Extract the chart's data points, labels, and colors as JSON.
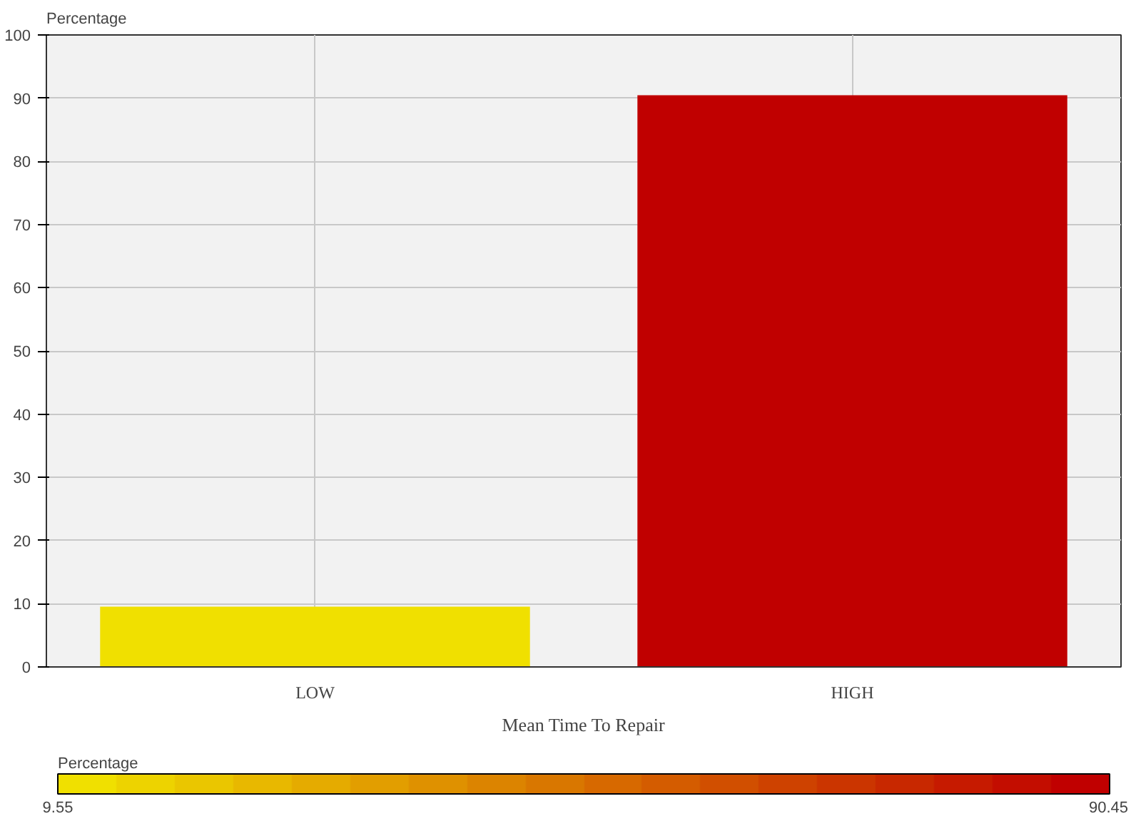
{
  "chart_data": {
    "type": "bar",
    "xlabel": "Mean Time To Repair",
    "ylabel": "Percentage",
    "clabel": "Percentage",
    "categories": [
      "LOW",
      "HIGH"
    ],
    "values": [
      9.55,
      90.45
    ],
    "colors": [
      "#f0e000",
      "#c00000"
    ],
    "ylim": [
      0,
      100
    ],
    "yticks": [
      0,
      10,
      20,
      30,
      40,
      50,
      60,
      70,
      80,
      90,
      100
    ],
    "clim": [
      9.55,
      90.45
    ],
    "cticks": [
      9.55,
      90.45
    ],
    "grid": true
  }
}
